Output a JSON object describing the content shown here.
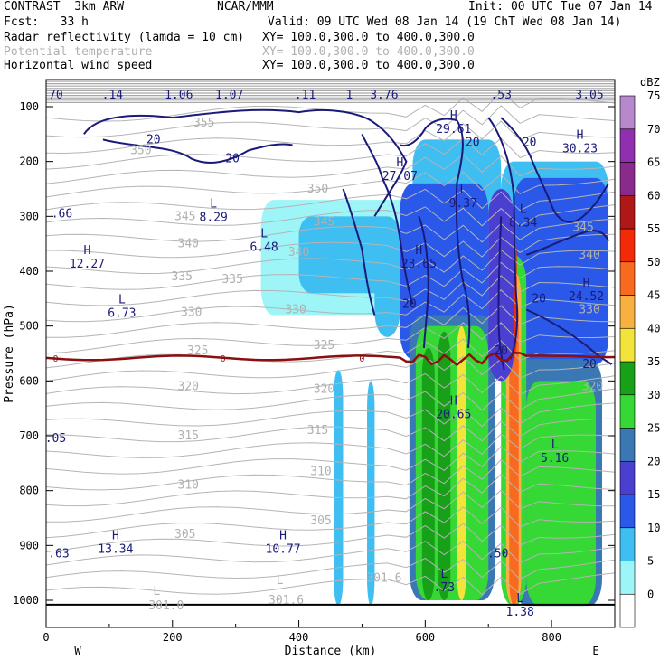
{
  "header": {
    "line1_left": "CONTRAST  3km ARW",
    "line1_mid": "NCAR/MMM",
    "line1_right": "Init: 00 UTC Tue 07 Jan 14",
    "line2_left": "Fcst:   33 h",
    "line2_right": "Valid: 09 UTC Wed 08 Jan 14 (19 ChT Wed 08 Jan 14)",
    "fields": [
      {
        "name": "Radar reflectivity (lamda = 10 cm)",
        "xy": "XY= 100.0,300.0 to 400.0,300.0",
        "muted": false
      },
      {
        "name": "Potential temperature",
        "xy": "XY= 100.0,300.0 to 400.0,300.0",
        "muted": true
      },
      {
        "name": "Horizontal wind speed",
        "xy": "XY= 100.0,300.0 to 400.0,300.0",
        "muted": false
      }
    ]
  },
  "chart_data": {
    "type": "cross-section",
    "xlabel": "Distance (km)",
    "ylabel": "Pressure (hPa)",
    "xlim": [
      0,
      900
    ],
    "ylim_hPa": [
      1050,
      80
    ],
    "x_ticks": [
      0,
      200,
      400,
      600,
      800
    ],
    "y_ticks": [
      100,
      200,
      300,
      400,
      500,
      600,
      700,
      800,
      900,
      1000
    ],
    "x_end_labels": {
      "left": "W",
      "right": "E"
    },
    "colorbar": {
      "unit": "dBZ",
      "levels": [
        0,
        5,
        10,
        15,
        20,
        25,
        30,
        35,
        40,
        45,
        50,
        55,
        60,
        65,
        70,
        75
      ],
      "colors": [
        "#ffffff",
        "#9df5f8",
        "#3fbef2",
        "#2a58e8",
        "#4a3fd0",
        "#3a78b4",
        "#35d835",
        "#18a018",
        "#f2e43a",
        "#f8b040",
        "#f86a20",
        "#f22a08",
        "#b01818",
        "#8a2a8c",
        "#9030b0",
        "#b888cc"
      ]
    },
    "reflectivity_cells": [
      {
        "x": [
          455,
          470
        ],
        "p": [
          580,
          1010
        ],
        "dbz": 10
      },
      {
        "x": [
          508,
          520
        ],
        "p": [
          600,
          1010
        ],
        "dbz": 10
      },
      {
        "x": [
          340,
          580
        ],
        "p": [
          270,
          480
        ],
        "dbz": 5
      },
      {
        "x": [
          400,
          560
        ],
        "p": [
          300,
          440
        ],
        "dbz": 10
      },
      {
        "x": [
          520,
          560
        ],
        "p": [
          340,
          520
        ],
        "dbz": 10
      },
      {
        "x": [
          580,
          720
        ],
        "p": [
          160,
          480
        ],
        "dbz": 10
      },
      {
        "x": [
          560,
          700
        ],
        "p": [
          240,
          560
        ],
        "dbz": 15
      },
      {
        "x": [
          720,
          890
        ],
        "p": [
          200,
          560
        ],
        "dbz": 10
      },
      {
        "x": [
          740,
          890
        ],
        "p": [
          230,
          570
        ],
        "dbz": 15
      },
      {
        "x": [
          575,
          710
        ],
        "p": [
          480,
          1000
        ],
        "dbz": 25
      },
      {
        "x": [
          585,
          700
        ],
        "p": [
          500,
          1000
        ],
        "dbz": 30
      },
      {
        "x": [
          595,
          615
        ],
        "p": [
          540,
          1000
        ],
        "dbz": 35
      },
      {
        "x": [
          620,
          640
        ],
        "p": [
          510,
          1000
        ],
        "dbz": 35
      },
      {
        "x": [
          650,
          665
        ],
        "p": [
          500,
          1000
        ],
        "dbz": 40
      },
      {
        "x": [
          740,
          880
        ],
        "p": [
          560,
          1010
        ],
        "dbz": 25
      },
      {
        "x": [
          760,
          870
        ],
        "p": [
          600,
          1010
        ],
        "dbz": 30
      },
      {
        "x": [
          720,
          760
        ],
        "p": [
          370,
          1010
        ],
        "dbz": 30
      },
      {
        "x": [
          728,
          752
        ],
        "p": [
          400,
          1010
        ],
        "dbz": 45
      },
      {
        "x": [
          733,
          748
        ],
        "p": [
          440,
          1010
        ],
        "dbz": 50
      },
      {
        "x": [
          735,
          745
        ],
        "p": [
          330,
          560
        ],
        "dbz": 55
      },
      {
        "x": [
          700,
          740
        ],
        "p": [
          250,
          600
        ],
        "dbz": 20
      }
    ],
    "theta_labels": [
      {
        "label": "355",
        "x": 250,
        "p": 130
      },
      {
        "label": "350",
        "x": 150,
        "p": 180
      },
      {
        "label": "350",
        "x": 430,
        "p": 250
      },
      {
        "label": "345",
        "x": 220,
        "p": 300
      },
      {
        "label": "345",
        "x": 440,
        "p": 310
      },
      {
        "label": "345",
        "x": 850,
        "p": 320
      },
      {
        "label": "340",
        "x": 225,
        "p": 350
      },
      {
        "label": "340",
        "x": 400,
        "p": 365
      },
      {
        "label": "340",
        "x": 860,
        "p": 370
      },
      {
        "label": "335",
        "x": 215,
        "p": 410
      },
      {
        "label": "335",
        "x": 295,
        "p": 415
      },
      {
        "label": "330",
        "x": 230,
        "p": 475
      },
      {
        "label": "330",
        "x": 395,
        "p": 470
      },
      {
        "label": "330",
        "x": 860,
        "p": 470
      },
      {
        "label": "325",
        "x": 240,
        "p": 545
      },
      {
        "label": "325",
        "x": 440,
        "p": 535
      },
      {
        "label": "320",
        "x": 225,
        "p": 610
      },
      {
        "label": "320",
        "x": 440,
        "p": 615
      },
      {
        "label": "320",
        "x": 865,
        "p": 610
      },
      {
        "label": "315",
        "x": 225,
        "p": 700
      },
      {
        "label": "315",
        "x": 430,
        "p": 690
      },
      {
        "label": "310",
        "x": 225,
        "p": 790
      },
      {
        "label": "310",
        "x": 435,
        "p": 765
      },
      {
        "label": "305",
        "x": 220,
        "p": 880
      },
      {
        "label": "305",
        "x": 435,
        "p": 855
      },
      {
        "label": "301.6",
        "x": 535,
        "p": 960
      },
      {
        "label": "301.6",
        "x": 380,
        "p": 1000
      },
      {
        "label": "301.0",
        "x": 190,
        "p": 1010
      }
    ],
    "theta_hl": [
      {
        "label": "L",
        "x": 175,
        "p": 990
      },
      {
        "label": "L",
        "x": 370,
        "p": 970
      }
    ],
    "wind_labels": [
      {
        "label": "20",
        "x": 170,
        "p": 160
      },
      {
        "label": "20",
        "x": 295,
        "p": 195
      },
      {
        "label": "20",
        "x": 675,
        "p": 165
      },
      {
        "label": "20",
        "x": 765,
        "p": 165
      },
      {
        "label": "20",
        "x": 575,
        "p": 460
      },
      {
        "label": "20",
        "x": 780,
        "p": 450
      },
      {
        "label": "20",
        "x": 720,
        "p": 545
      },
      {
        "label": "20",
        "x": 860,
        "p": 570
      }
    ],
    "top_values": [
      {
        "label": ".70",
        "x": 10
      },
      {
        "label": ".14",
        "x": 105
      },
      {
        "label": "1.06",
        "x": 210
      },
      {
        "label": "1.07",
        "x": 290
      },
      {
        "label": ".11",
        "x": 410
      },
      {
        "label": "1",
        "x": 480
      },
      {
        "label": "3.76",
        "x": 535
      },
      {
        "label": ".53",
        "x": 720
      },
      {
        "label": "3.05",
        "x": 860
      }
    ],
    "extrema": [
      {
        "type": "H",
        "value": "29.61",
        "x": 645,
        "p": 130
      },
      {
        "type": "H",
        "value": "30.23",
        "x": 845,
        "p": 165
      },
      {
        "type": "H",
        "value": "27.07",
        "x": 560,
        "p": 215
      },
      {
        "type": "L",
        "value": "9.37",
        "x": 660,
        "p": 265
      },
      {
        "type": "L",
        "value": "8.34",
        "x": 755,
        "p": 300
      },
      {
        "type": "L",
        "value": "8.29",
        "x": 265,
        "p": 290
      },
      {
        "type": "L",
        "value": "6.48",
        "x": 345,
        "p": 345
      },
      {
        "type": "H",
        "value": "12.27",
        "x": 65,
        "p": 375
      },
      {
        "type": "H",
        "value": "23.65",
        "x": 590,
        "p": 375
      },
      {
        "type": "H",
        "value": "24.52",
        "x": 855,
        "p": 435
      },
      {
        "type": "L",
        "value": "6.73",
        "x": 120,
        "p": 465
      },
      {
        "type": "H",
        "value": "20.65",
        "x": 645,
        "p": 650
      },
      {
        "type": "L",
        "value": "5.16",
        "x": 805,
        "p": 730
      },
      {
        "type": "H",
        "value": "13.34",
        "x": 110,
        "p": 895
      },
      {
        "type": "H",
        "value": "10.77",
        "x": 375,
        "p": 895
      },
      {
        "type": "L",
        "value": ".73",
        "x": 630,
        "p": 965
      },
      {
        "type": "L",
        "value": "1.38",
        "x": 750,
        "p": 1010
      }
    ],
    "edge_values": [
      {
        "label": ".66",
        "x": 25,
        "p": 295
      },
      {
        "label": ".05",
        "x": 15,
        "p": 705
      },
      {
        "label": ".63",
        "x": 20,
        "p": 915
      },
      {
        "label": ".50",
        "x": 715,
        "p": 915
      }
    ],
    "freezing_level": {
      "label": "0",
      "p_mean": 558
    }
  }
}
